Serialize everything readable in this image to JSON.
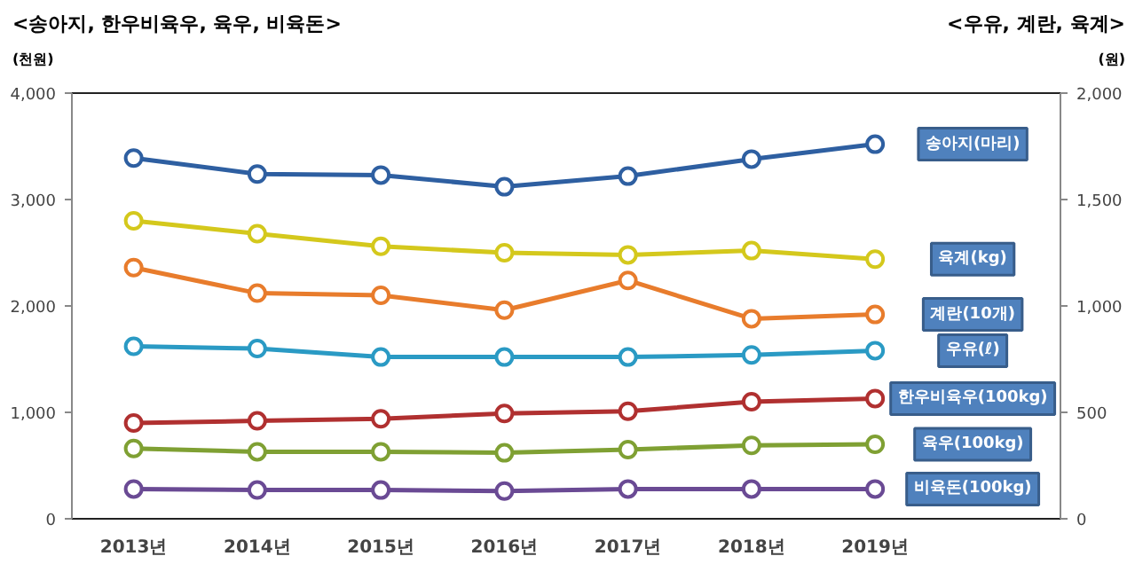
{
  "chart_data": {
    "type": "line",
    "title": "<송아지, 한우비육우, 육우, 비육돈>",
    "ylabel": "(천원)",
    "y2label": "(원)",
    "annotations": [
      "<우유, 계란, 육계>"
    ],
    "categories": [
      "2013년",
      "2014년",
      "2015년",
      "2016년",
      "2017년",
      "2018년",
      "2019년"
    ],
    "ylim": [
      0,
      4000
    ],
    "yticks": [
      0,
      {
        "value": 1000,
        "label": "1,000"
      },
      {
        "value": 2000,
        "label": "2,000"
      },
      {
        "value": 3000,
        "label": "3,000"
      },
      {
        "value": 4000,
        "label": "4,000"
      }
    ],
    "y2lim": [
      0,
      2000
    ],
    "y2ticks": [
      0,
      500,
      {
        "value": 1000,
        "label": "1,000"
      },
      {
        "value": 1500,
        "label": "1,500"
      },
      {
        "value": 2000,
        "label": "2,000"
      }
    ],
    "marker": "circle",
    "line_style": "solid",
    "grid": false,
    "series": [
      {
        "name": "송아지(마리)",
        "color": "#2e5fa1",
        "values": [
          3390,
          3240,
          3230,
          3120,
          3220,
          3380,
          3520
        ]
      },
      {
        "name": "육계(kg)",
        "color": "#d4c81c",
        "axis": "y2",
        "values": [
          1400,
          1340,
          1280,
          1250,
          1240,
          1260,
          1220
        ]
      },
      {
        "name": "계란(10개)",
        "color": "#e87c2c",
        "axis": "y2",
        "values": [
          1180,
          1060,
          1050,
          980,
          1120,
          940,
          960
        ]
      },
      {
        "name": "우유(ℓ)",
        "color": "#2a9ac4",
        "axis": "y2",
        "values": [
          810,
          800,
          760,
          760,
          760,
          770,
          790
        ]
      },
      {
        "name": "한우비육우(100kg)",
        "color": "#b03030",
        "values": [
          900,
          920,
          940,
          990,
          1010,
          1100,
          1130
        ]
      },
      {
        "name": "육우(100kg)",
        "color": "#7fa033",
        "values": [
          660,
          630,
          630,
          620,
          650,
          690,
          700
        ]
      },
      {
        "name": "비육돈(100kg)",
        "color": "#6a4a94",
        "values": [
          280,
          270,
          270,
          260,
          280,
          280,
          280
        ]
      }
    ]
  }
}
